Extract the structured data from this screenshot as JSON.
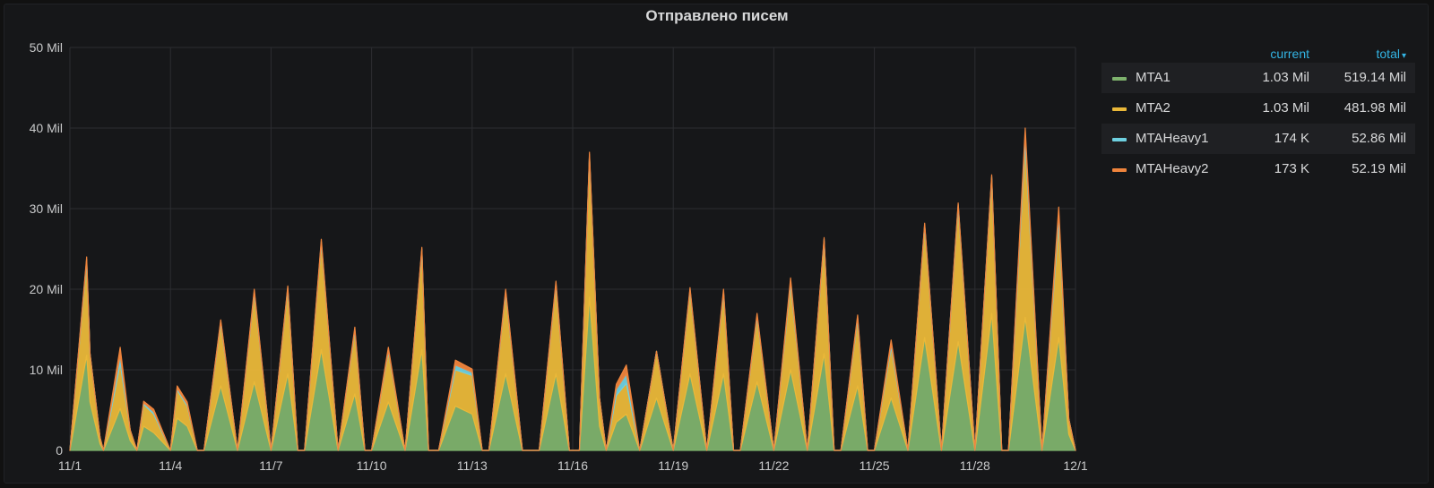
{
  "panel": {
    "title": "Отправлено писем"
  },
  "legend": {
    "header_current": "current",
    "header_total": "total",
    "sort_icon": "caret-down-icon",
    "items": [
      {
        "name": "MTA1",
        "color": "#7eb26d",
        "current": "1.03 Mil",
        "total": "519.14 Mil"
      },
      {
        "name": "MTA2",
        "color": "#eab839",
        "current": "1.03 Mil",
        "total": "481.98 Mil"
      },
      {
        "name": "MTAHeavy1",
        "color": "#6ed0e0",
        "current": "174 K",
        "total": "52.86 Mil"
      },
      {
        "name": "MTAHeavy2",
        "color": "#ef843c",
        "current": "173 K",
        "total": "52.19 Mil"
      }
    ]
  },
  "chart_data": {
    "type": "area",
    "stacked": true,
    "grid": true,
    "legend_position": "right",
    "xlim": [
      0,
      30
    ],
    "ylim": [
      0,
      50
    ],
    "y_unit": "Mil",
    "y_ticks": [
      {
        "value": 0,
        "label": "0"
      },
      {
        "value": 10,
        "label": "10 Mil"
      },
      {
        "value": 20,
        "label": "20 Mil"
      },
      {
        "value": 30,
        "label": "30 Mil"
      },
      {
        "value": 40,
        "label": "40 Mil"
      },
      {
        "value": 50,
        "label": "50 Mil"
      }
    ],
    "x_ticks": [
      {
        "value": 0,
        "label": "11/1"
      },
      {
        "value": 3,
        "label": "11/4"
      },
      {
        "value": 6,
        "label": "11/7"
      },
      {
        "value": 9,
        "label": "11/10"
      },
      {
        "value": 12,
        "label": "11/13"
      },
      {
        "value": 15,
        "label": "11/16"
      },
      {
        "value": 18,
        "label": "11/19"
      },
      {
        "value": 21,
        "label": "11/22"
      },
      {
        "value": 24,
        "label": "11/25"
      },
      {
        "value": 27,
        "label": "11/28"
      },
      {
        "value": 30,
        "label": "12/1"
      }
    ],
    "x": [
      0,
      0.5,
      0.6,
      0.9,
      1.0,
      1.5,
      1.8,
      2.0,
      2.2,
      2.5,
      3.0,
      3.2,
      3.5,
      3.8,
      4.0,
      4.5,
      5.0,
      5.5,
      6.0,
      6.5,
      6.8,
      7.0,
      7.5,
      8.0,
      8.5,
      8.8,
      9.0,
      9.5,
      10.0,
      10.5,
      10.7,
      11.0,
      11.5,
      12.0,
      12.3,
      12.5,
      13.0,
      13.5,
      14.0,
      14.5,
      14.9,
      15.2,
      15.5,
      15.8,
      16.0,
      16.3,
      16.6,
      17.0,
      17.5,
      18.0,
      18.5,
      19.0,
      19.5,
      19.8,
      20.0,
      20.5,
      21.0,
      21.5,
      22.0,
      22.5,
      22.8,
      23.0,
      23.5,
      23.8,
      24.0,
      24.5,
      25.0,
      25.5,
      26.0,
      26.5,
      27.0,
      27.5,
      27.8,
      28.0,
      28.5,
      29.0,
      29.5,
      29.8,
      30.0
    ],
    "series": [
      {
        "name": "MTA1",
        "values": [
          0,
          11.8,
          6.0,
          0.8,
          0,
          5.2,
          1.2,
          0,
          3.0,
          2.2,
          0,
          4.0,
          3.0,
          0,
          0,
          8.0,
          0,
          8.5,
          0,
          9.5,
          0,
          0,
          12.5,
          0,
          7.0,
          0,
          0,
          6.0,
          0,
          12.5,
          0,
          0,
          5.5,
          4.5,
          0,
          0,
          9.5,
          0,
          0,
          9.5,
          0,
          0,
          19.0,
          3.0,
          0,
          3.5,
          4.5,
          0,
          6.5,
          0,
          9.5,
          0,
          9.5,
          0,
          0,
          8.5,
          0,
          10.0,
          0,
          12.0,
          0,
          0,
          8.0,
          0,
          0,
          6.5,
          0,
          14.0,
          0,
          13.5,
          0,
          17.0,
          0,
          0,
          16.5,
          0,
          14.0,
          2.0,
          0
        ]
      },
      {
        "name": "MTA2",
        "values": [
          0,
          11.6,
          6.0,
          0.8,
          0,
          5.6,
          1.3,
          0,
          2.7,
          2.3,
          0,
          3.5,
          2.5,
          0,
          0,
          7.8,
          0,
          11.0,
          0,
          10.5,
          0,
          0,
          13.2,
          0,
          7.8,
          0,
          0,
          6.2,
          0,
          12.3,
          0,
          0,
          4.5,
          4.8,
          0,
          0,
          10.0,
          0,
          0,
          11.0,
          0,
          0,
          17.5,
          3.5,
          0,
          3.3,
          3.8,
          0,
          5.8,
          0,
          10.3,
          0,
          10.0,
          0,
          0,
          8.0,
          0,
          10.6,
          0,
          14.0,
          0,
          0,
          8.2,
          0,
          0,
          6.3,
          0,
          13.8,
          0,
          16.7,
          0,
          16.8,
          0,
          0,
          21.7,
          0,
          14.5,
          1.9,
          0
        ]
      },
      {
        "name": "MTAHeavy1",
        "values": [
          0,
          0.3,
          0,
          0,
          0,
          1.0,
          0,
          0,
          0.2,
          0.3,
          0,
          0.2,
          0.2,
          0,
          0,
          0.2,
          0,
          0.2,
          0,
          0.2,
          0,
          0,
          0.2,
          0,
          0.2,
          0,
          0,
          0.2,
          0,
          0.2,
          0,
          0,
          0.6,
          0.4,
          0,
          0,
          0.2,
          0,
          0,
          0.2,
          0,
          0,
          0.2,
          0,
          0,
          0.8,
          1.2,
          0,
          0,
          0,
          0.2,
          0,
          0.2,
          0,
          0,
          0.2,
          0,
          0.4,
          0,
          0.2,
          0,
          0,
          0.3,
          0,
          0,
          0.4,
          0,
          0.2,
          0,
          0.3,
          0,
          0.2,
          0,
          0,
          1.0,
          0,
          0.9,
          0,
          0
        ]
      },
      {
        "name": "MTAHeavy2",
        "values": [
          0,
          0.3,
          0,
          0,
          0,
          1.0,
          0,
          0,
          0.2,
          0.3,
          0,
          0.3,
          0.3,
          0,
          0,
          0.2,
          0,
          0.3,
          0,
          0.2,
          0,
          0,
          0.3,
          0,
          0.3,
          0,
          0,
          0.4,
          0,
          0.2,
          0,
          0,
          0.6,
          0.4,
          0,
          0,
          0.3,
          0,
          0,
          0.3,
          0,
          0,
          0.3,
          0,
          0,
          0.6,
          1.1,
          0,
          0,
          0,
          0.2,
          0,
          0.3,
          0,
          0,
          0.3,
          0,
          0.4,
          0,
          0.2,
          0,
          0,
          0.3,
          0,
          0,
          0.5,
          0,
          0.2,
          0,
          0.2,
          0,
          0.2,
          0,
          0,
          0.8,
          0,
          0.8,
          0,
          0
        ]
      }
    ]
  }
}
